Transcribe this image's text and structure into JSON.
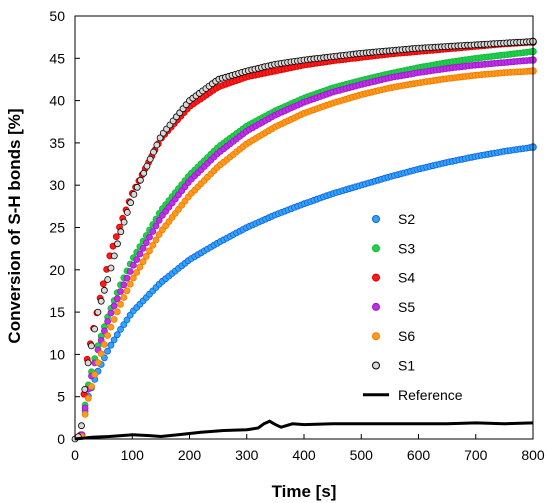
{
  "chart_data": {
    "type": "scatter",
    "xlabel": "Time [s]",
    "ylabel": "Conversion of S-H bonds [%]",
    "xlim": [
      0,
      800
    ],
    "ylim": [
      0,
      50
    ],
    "xticks": [
      "0",
      "100",
      "200",
      "300",
      "400",
      "500",
      "600",
      "700",
      "800"
    ],
    "yticks": [
      "0",
      "5",
      "10",
      "15",
      "20",
      "25",
      "30",
      "35",
      "40",
      "45",
      "50"
    ],
    "grid": false,
    "legend_position": "lower-right",
    "series": [
      {
        "name": "S2",
        "kind": "markers",
        "color": "#1f5bd6",
        "fill": "#29a8ff",
        "points": [
          [
            12,
            0.5
          ],
          [
            20,
            4.5
          ],
          [
            40,
            8
          ],
          [
            60,
            10.8
          ],
          [
            80,
            13
          ],
          [
            100,
            15
          ],
          [
            150,
            18.5
          ],
          [
            200,
            21.2
          ],
          [
            250,
            23.2
          ],
          [
            300,
            25
          ],
          [
            350,
            26.5
          ],
          [
            400,
            27.8
          ],
          [
            450,
            29
          ],
          [
            500,
            30
          ],
          [
            550,
            31
          ],
          [
            600,
            31.9
          ],
          [
            650,
            32.7
          ],
          [
            700,
            33.4
          ],
          [
            750,
            34
          ],
          [
            800,
            34.5
          ]
        ]
      },
      {
        "name": "S3",
        "kind": "markers",
        "color": "#14b83c",
        "fill": "#1ed04a",
        "points": [
          [
            12,
            0.5
          ],
          [
            20,
            5.5
          ],
          [
            40,
            11
          ],
          [
            60,
            15
          ],
          [
            80,
            18.3
          ],
          [
            100,
            21.2
          ],
          [
            150,
            27
          ],
          [
            200,
            31.2
          ],
          [
            250,
            34.5
          ],
          [
            300,
            37
          ],
          [
            350,
            38.8
          ],
          [
            400,
            40.3
          ],
          [
            450,
            41.5
          ],
          [
            500,
            42.4
          ],
          [
            550,
            43.2
          ],
          [
            600,
            43.9
          ],
          [
            650,
            44.5
          ],
          [
            700,
            45
          ],
          [
            750,
            45.4
          ],
          [
            800,
            45.8
          ]
        ]
      },
      {
        "name": "S4",
        "kind": "markers",
        "color": "#d40000",
        "fill": "#ff1a1a",
        "points": [
          [
            10,
            0.5
          ],
          [
            20,
            9
          ],
          [
            40,
            15.5
          ],
          [
            60,
            21.5
          ],
          [
            80,
            25.5
          ],
          [
            100,
            29
          ],
          [
            150,
            35.5
          ],
          [
            200,
            39.3
          ],
          [
            250,
            41.6
          ],
          [
            300,
            42.8
          ],
          [
            350,
            43.5
          ],
          [
            400,
            44.2
          ],
          [
            450,
            44.7
          ],
          [
            500,
            45.1
          ],
          [
            550,
            45.5
          ],
          [
            600,
            45.8
          ],
          [
            650,
            46.1
          ],
          [
            700,
            46.4
          ],
          [
            750,
            46.7
          ],
          [
            800,
            46.9
          ]
        ]
      },
      {
        "name": "S5",
        "kind": "markers",
        "color": "#9a18c8",
        "fill": "#c02ee8",
        "points": [
          [
            12,
            0.5
          ],
          [
            20,
            5
          ],
          [
            40,
            10.5
          ],
          [
            60,
            14.5
          ],
          [
            80,
            17.5
          ],
          [
            100,
            20.3
          ],
          [
            150,
            26.2
          ],
          [
            200,
            30.5
          ],
          [
            250,
            33.8
          ],
          [
            300,
            36.4
          ],
          [
            350,
            38.3
          ],
          [
            400,
            39.8
          ],
          [
            450,
            41
          ],
          [
            500,
            41.9
          ],
          [
            550,
            42.7
          ],
          [
            600,
            43.3
          ],
          [
            650,
            43.8
          ],
          [
            700,
            44.2
          ],
          [
            750,
            44.5
          ],
          [
            800,
            44.8
          ]
        ]
      },
      {
        "name": "S6",
        "kind": "markers",
        "color": "#f07800",
        "fill": "#ff9a1a",
        "points": [
          [
            12,
            0.3
          ],
          [
            20,
            4
          ],
          [
            40,
            9
          ],
          [
            60,
            12.8
          ],
          [
            80,
            16
          ],
          [
            100,
            18.8
          ],
          [
            150,
            24.5
          ],
          [
            200,
            28.8
          ],
          [
            250,
            32.2
          ],
          [
            300,
            34.9
          ],
          [
            350,
            36.9
          ],
          [
            400,
            38.5
          ],
          [
            450,
            39.7
          ],
          [
            500,
            40.7
          ],
          [
            550,
            41.5
          ],
          [
            600,
            42.1
          ],
          [
            650,
            42.6
          ],
          [
            700,
            43
          ],
          [
            750,
            43.3
          ],
          [
            800,
            43.5
          ]
        ]
      },
      {
        "name": "S1",
        "kind": "markers",
        "color": "#000000",
        "fill": "#d8d8d8",
        "points": [
          [
            0,
            0
          ],
          [
            10,
            0.5
          ],
          [
            20,
            8
          ],
          [
            40,
            15
          ],
          [
            60,
            19.5
          ],
          [
            80,
            24.5
          ],
          [
            100,
            28.5
          ],
          [
            150,
            35.8
          ],
          [
            200,
            40
          ],
          [
            250,
            42.5
          ],
          [
            300,
            43.5
          ],
          [
            350,
            44.3
          ],
          [
            400,
            44.8
          ],
          [
            450,
            45.2
          ],
          [
            500,
            45.6
          ],
          [
            550,
            45.9
          ],
          [
            600,
            46.2
          ],
          [
            650,
            46.4
          ],
          [
            700,
            46.6
          ],
          [
            750,
            46.8
          ],
          [
            800,
            47
          ]
        ]
      },
      {
        "name": "Reference",
        "kind": "line",
        "color": "#000000",
        "points": [
          [
            0,
            0
          ],
          [
            30,
            0.2
          ],
          [
            60,
            0.3
          ],
          [
            100,
            0.5
          ],
          [
            130,
            0.4
          ],
          [
            150,
            0.3
          ],
          [
            180,
            0.5
          ],
          [
            220,
            0.8
          ],
          [
            260,
            1
          ],
          [
            300,
            1.1
          ],
          [
            320,
            1.3
          ],
          [
            330,
            1.8
          ],
          [
            340,
            2.1
          ],
          [
            350,
            1.7
          ],
          [
            360,
            1.4
          ],
          [
            380,
            1.8
          ],
          [
            400,
            1.7
          ],
          [
            450,
            1.8
          ],
          [
            500,
            1.8
          ],
          [
            550,
            1.8
          ],
          [
            600,
            1.8
          ],
          [
            650,
            1.8
          ],
          [
            700,
            1.9
          ],
          [
            750,
            1.8
          ],
          [
            800,
            1.9
          ]
        ]
      }
    ]
  }
}
